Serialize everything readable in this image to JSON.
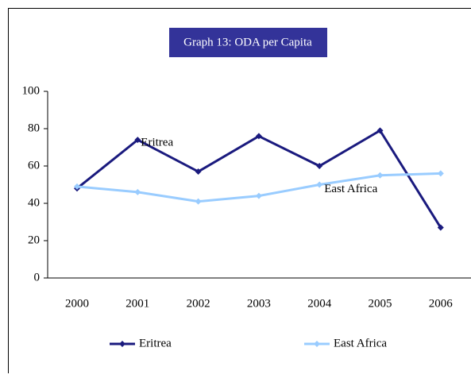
{
  "chart_data": {
    "type": "line",
    "title": "Graph 13: ODA per Capita",
    "categories": [
      "2000",
      "2001",
      "2002",
      "2003",
      "2004",
      "2005",
      "2006"
    ],
    "series": [
      {
        "name": "Eritrea",
        "color": "#1a1a7e",
        "values": [
          48,
          74,
          57,
          76,
          60,
          79,
          27
        ]
      },
      {
        "name": "East Africa",
        "color": "#99ccff",
        "values": [
          49,
          46,
          41,
          44,
          50,
          55,
          56
        ]
      }
    ],
    "annotations": [
      "Eritrea",
      "East Africa"
    ],
    "ylim": [
      0,
      100
    ],
    "yticks": [
      0,
      20,
      40,
      60,
      80,
      100
    ],
    "grid": false,
    "legend": "bottom"
  }
}
